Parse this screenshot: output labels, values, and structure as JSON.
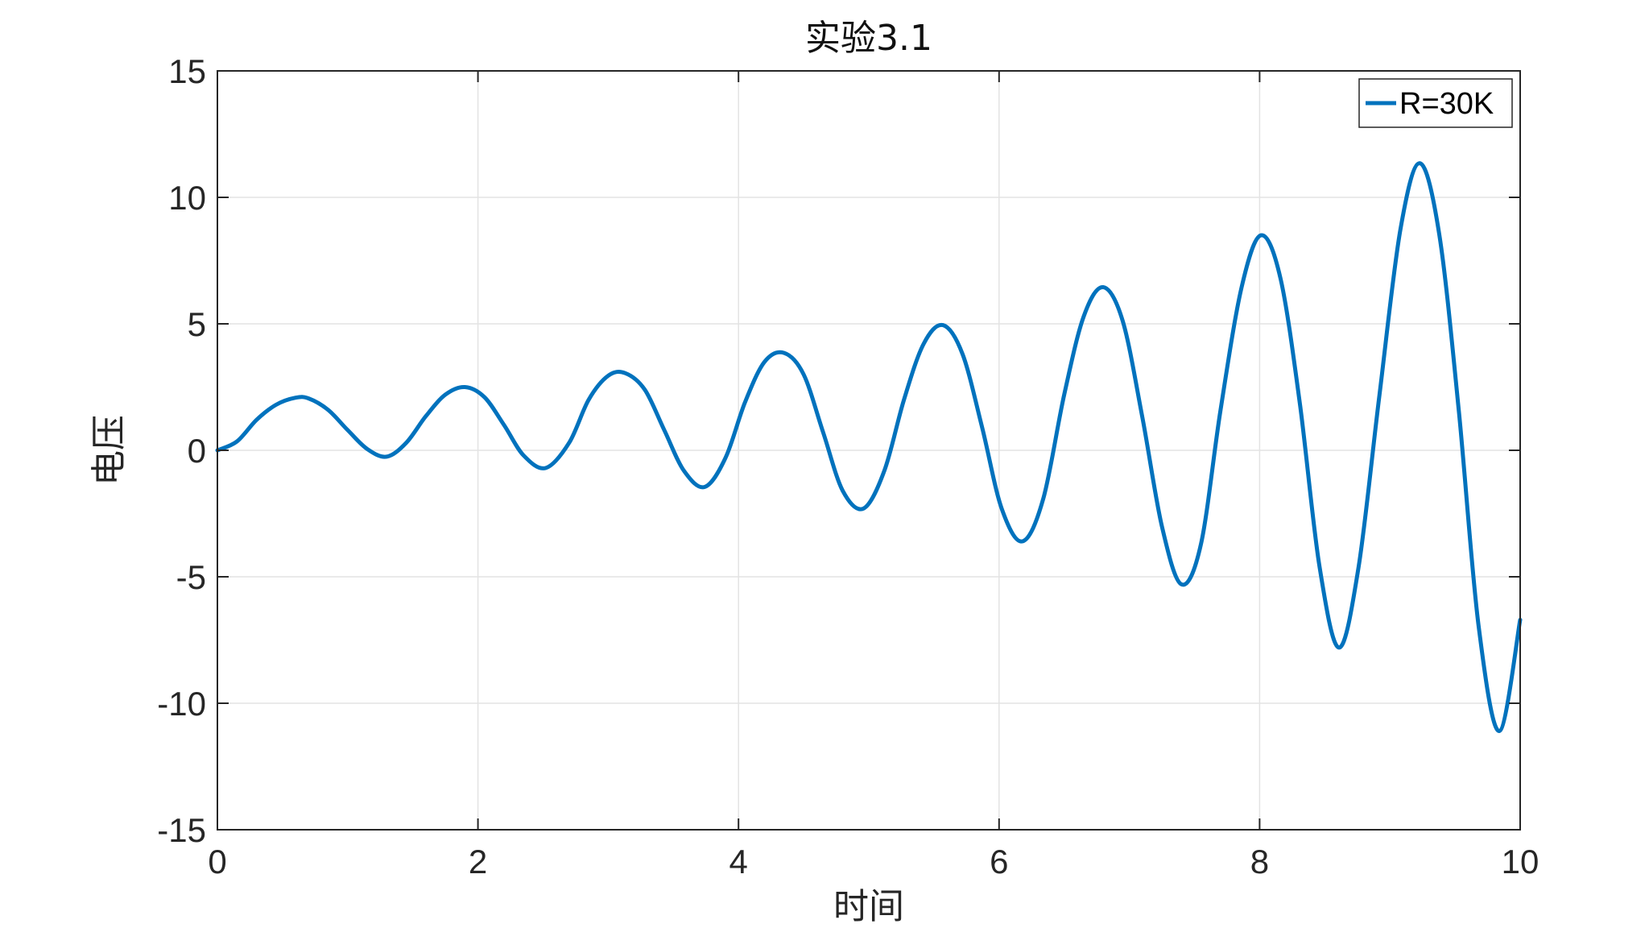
{
  "chart_data": {
    "type": "line",
    "title": "实验3.1",
    "xlabel": "时间",
    "ylabel": "电压",
    "xlim": [
      0,
      10
    ],
    "ylim": [
      -15,
      15
    ],
    "xticks": [
      0,
      2,
      4,
      6,
      8,
      10
    ],
    "yticks": [
      -15,
      -10,
      -5,
      0,
      5,
      10,
      15
    ],
    "xtick_labels": [
      "0",
      "2",
      "4",
      "6",
      "8",
      "10"
    ],
    "ytick_labels": [
      "-15",
      "-10",
      "-5",
      "0",
      "5",
      "10",
      "15"
    ],
    "grid": true,
    "legend_position": "top-right",
    "series": [
      {
        "name": "R=30K",
        "color": "#0072BD",
        "x": [
          0,
          0.15,
          0.3,
          0.45,
          0.6,
          0.7,
          0.85,
          1.0,
          1.15,
          1.3,
          1.45,
          1.6,
          1.75,
          1.9,
          2.05,
          2.2,
          2.35,
          2.52,
          2.7,
          2.85,
          3.0,
          3.13,
          3.28,
          3.43,
          3.58,
          3.74,
          3.9,
          4.05,
          4.2,
          4.35,
          4.5,
          4.65,
          4.8,
          4.96,
          5.12,
          5.27,
          5.42,
          5.57,
          5.72,
          5.87,
          6.02,
          6.18,
          6.34,
          6.5,
          6.65,
          6.8,
          6.95,
          7.1,
          7.25,
          7.4,
          7.55,
          7.7,
          7.86,
          8.01,
          8.16,
          8.31,
          8.46,
          8.61,
          8.76,
          8.92,
          9.08,
          9.23,
          9.38,
          9.53,
          9.68,
          9.84,
          10.0
        ],
        "y": [
          0,
          0.35,
          1.2,
          1.8,
          2.08,
          2.05,
          1.6,
          0.8,
          0.05,
          -0.25,
          0.3,
          1.35,
          2.2,
          2.5,
          2.1,
          1.0,
          -0.2,
          -0.7,
          0.3,
          2.0,
          2.95,
          3.05,
          2.4,
          0.8,
          -0.8,
          -1.45,
          -0.3,
          1.9,
          3.5,
          3.85,
          3.0,
          0.7,
          -1.6,
          -2.3,
          -0.8,
          2.0,
          4.2,
          4.95,
          3.8,
          0.9,
          -2.3,
          -3.6,
          -1.9,
          2.2,
          5.3,
          6.45,
          5.1,
          1.3,
          -3.0,
          -5.3,
          -3.7,
          1.6,
          6.4,
          8.5,
          6.8,
          1.8,
          -4.6,
          -7.8,
          -4.6,
          2.2,
          8.7,
          11.35,
          8.5,
          1.5,
          -6.9,
          -11.1,
          -6.7
        ]
      }
    ]
  }
}
